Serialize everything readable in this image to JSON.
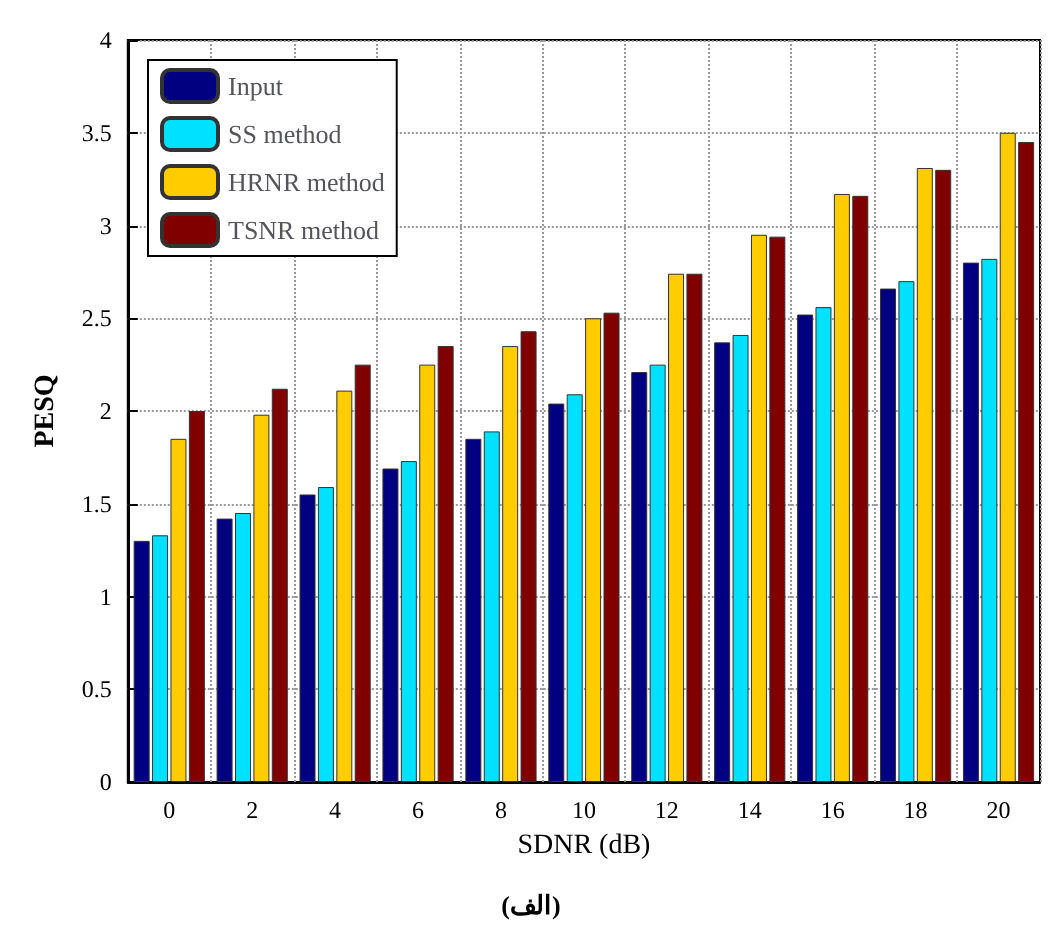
{
  "chart_data": {
    "type": "bar",
    "xlabel": "SDNR (dB)",
    "ylabel": "PESQ",
    "categories": [
      "0",
      "2",
      "4",
      "6",
      "8",
      "10",
      "12",
      "14",
      "16",
      "18",
      "20"
    ],
    "series": [
      {
        "name": "Input",
        "color": "#000080",
        "values": [
          1.3,
          1.42,
          1.55,
          1.69,
          1.85,
          2.04,
          2.21,
          2.37,
          2.52,
          2.66,
          2.8
        ]
      },
      {
        "name": "SS method",
        "color": "#00e0ff",
        "values": [
          1.33,
          1.45,
          1.59,
          1.73,
          1.89,
          2.09,
          2.25,
          2.41,
          2.56,
          2.7,
          2.82
        ]
      },
      {
        "name": "HRNR method",
        "color": "#ffcc00",
        "values": [
          1.85,
          1.98,
          2.11,
          2.25,
          2.35,
          2.5,
          2.74,
          2.95,
          3.17,
          3.31,
          3.5
        ]
      },
      {
        "name": "TSNR method",
        "color": "#800000",
        "values": [
          2.0,
          2.12,
          2.25,
          2.35,
          2.43,
          2.53,
          2.74,
          2.94,
          3.16,
          3.3,
          3.45
        ]
      }
    ],
    "ylim": [
      0,
      4
    ],
    "yticks": [
      0,
      0.5,
      1,
      1.5,
      2,
      2.5,
      3,
      3.5,
      4
    ],
    "grid": true,
    "legend": "top left",
    "annotations": [
      "(الف)"
    ]
  }
}
